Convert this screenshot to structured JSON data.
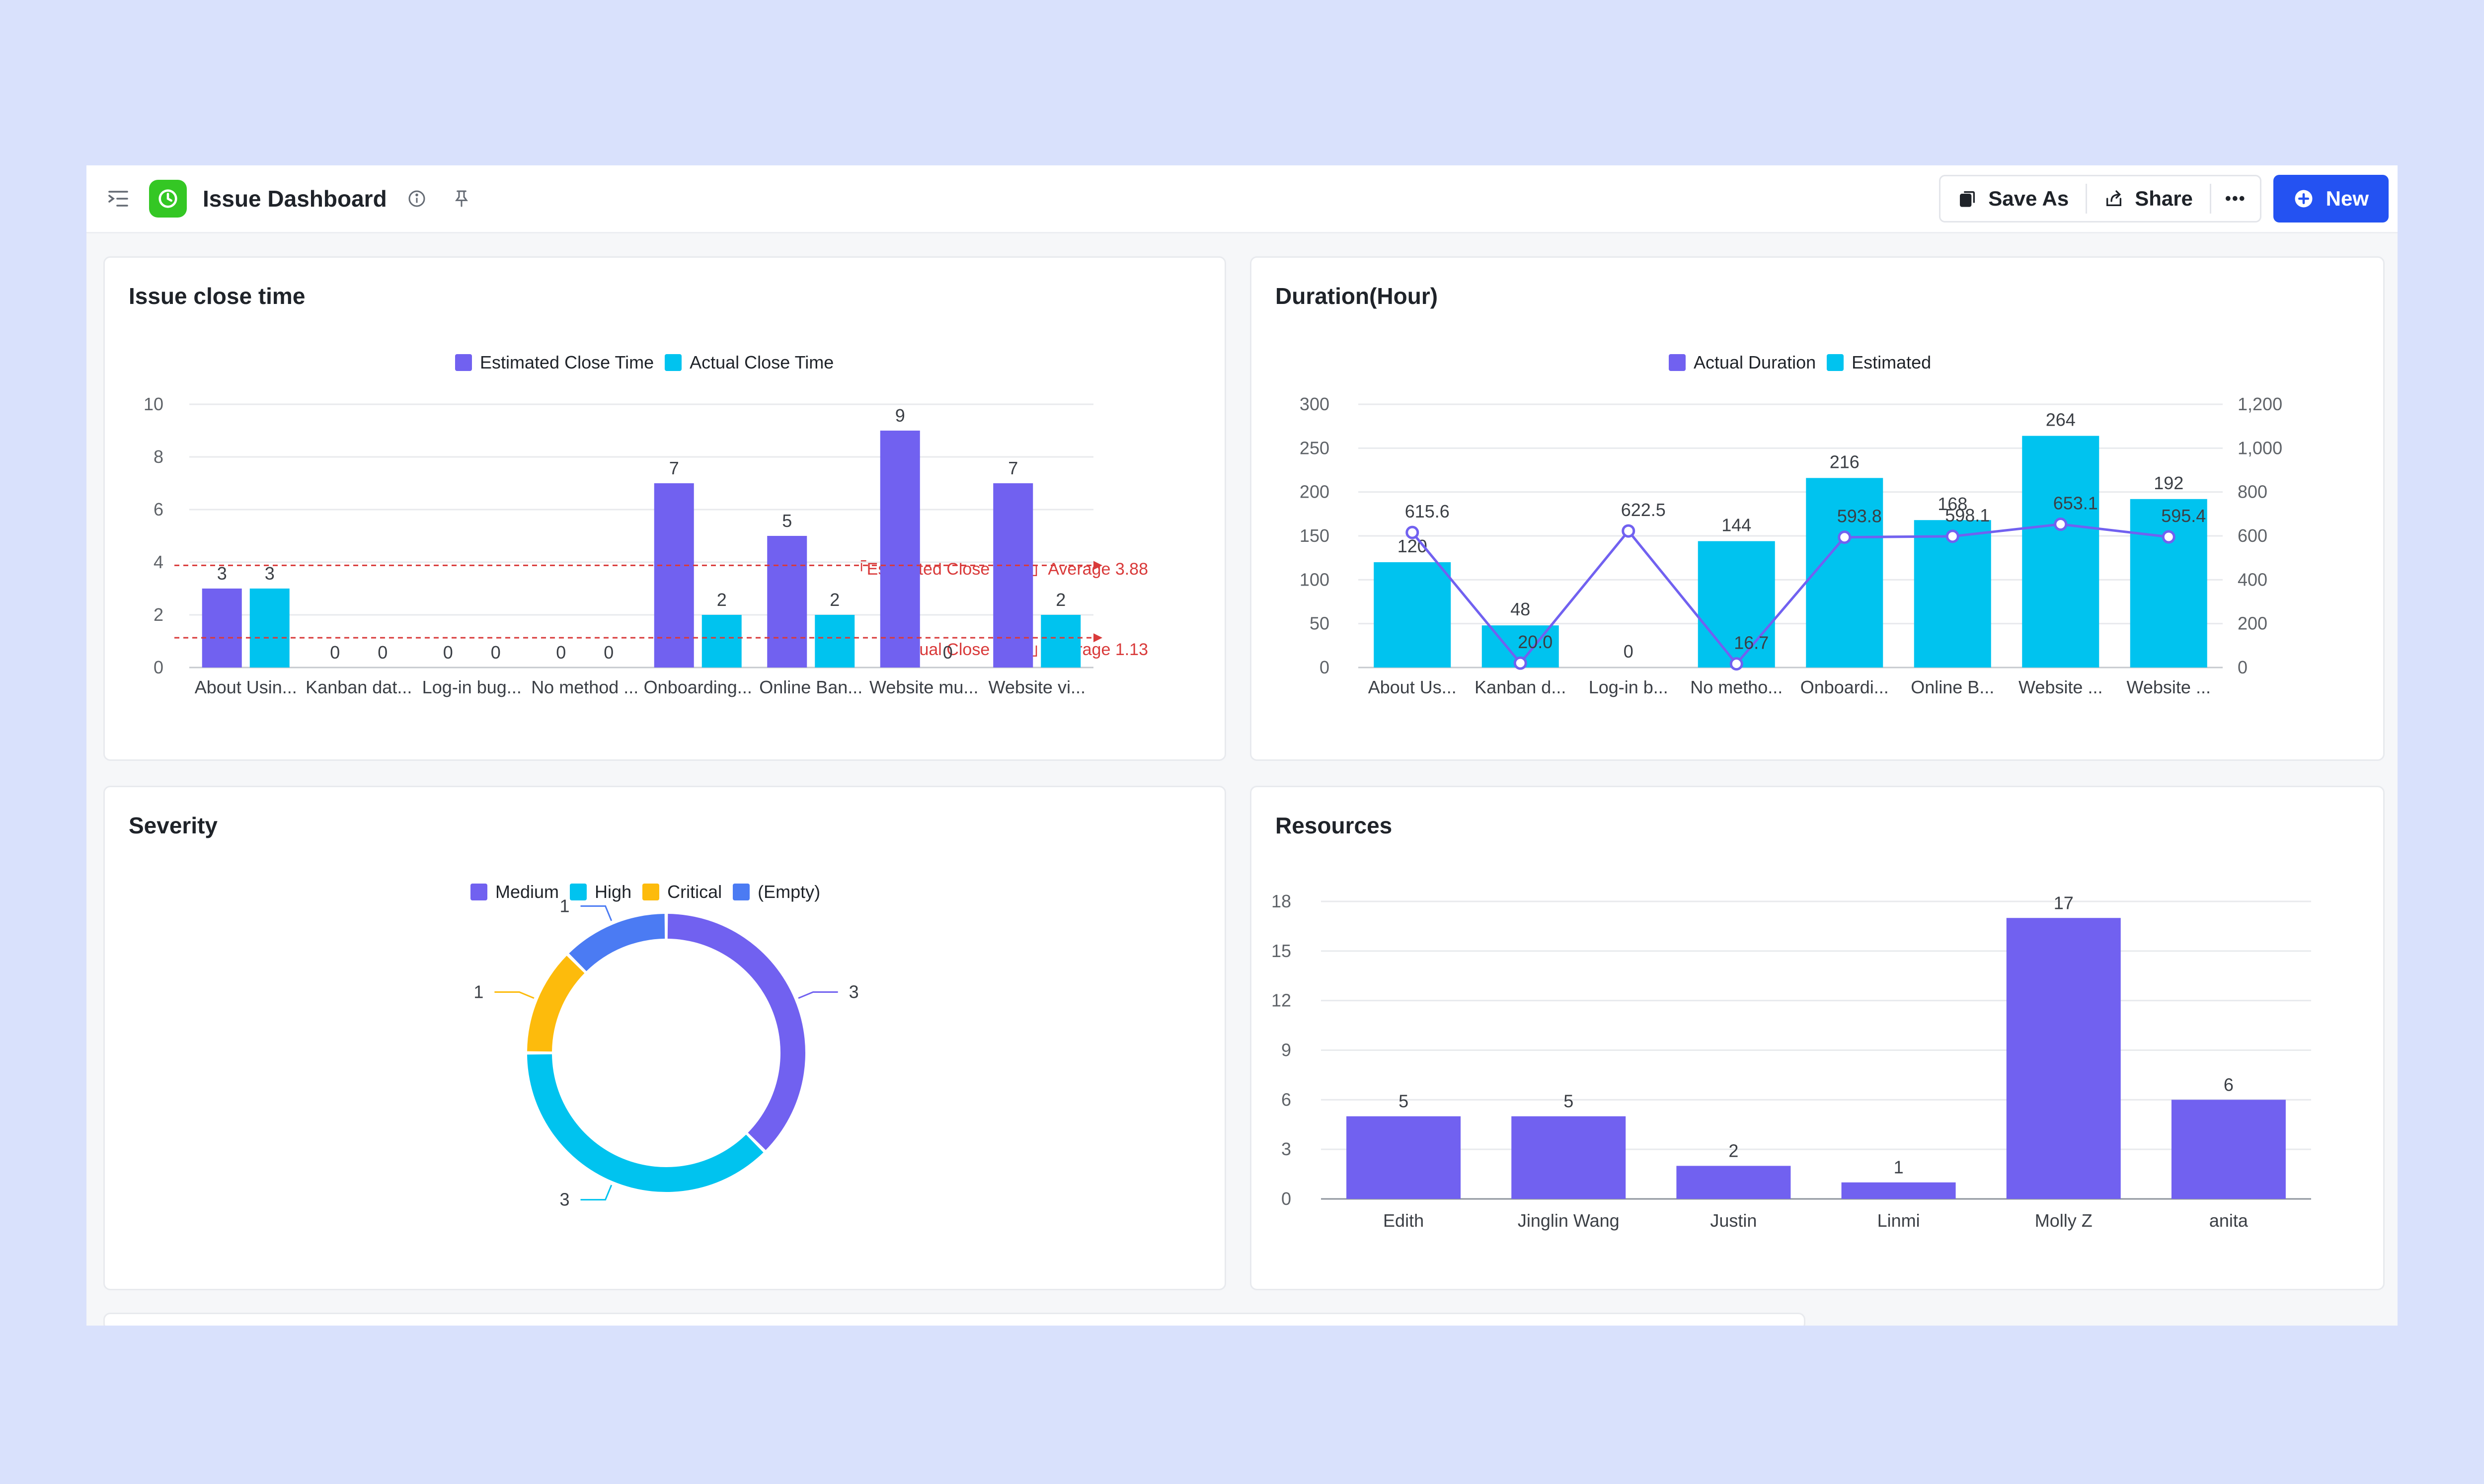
{
  "header": {
    "title": "Issue Dashboard",
    "save_as_label": "Save As",
    "share_label": "Share",
    "new_label": "New",
    "more_label": "•••"
  },
  "colors": {
    "purple": "#7161f0",
    "cyan": "#00c3ef",
    "orange": "#fdbb0c",
    "blue": "#4b7bf3",
    "brand": "#2452f2",
    "ref_line": "#d93a3a"
  },
  "cards": {
    "issue_close_time": {
      "title": "Issue close time",
      "legend": [
        "Estimated Close Time",
        "Actual Close Time"
      ],
      "ref_lines": [
        "「Estimated Close Time」Average 3.88",
        "「Actual Close Time」Average 1.13"
      ]
    },
    "duration": {
      "title": "Duration(Hour)",
      "legend": [
        "Actual Duration",
        "Estimated"
      ]
    },
    "severity": {
      "title": "Severity",
      "legend": [
        "Medium",
        "High",
        "Critical",
        "(Empty)"
      ]
    },
    "resources": {
      "title": "Resources"
    }
  },
  "chart_data": [
    {
      "type": "bar",
      "title": "Issue close time",
      "categories": [
        "About Usin...",
        "Kanban dat...",
        "Log-in bug...",
        "No method ...",
        "Onboarding...",
        "Online Ban...",
        "Website mu...",
        "Website vi..."
      ],
      "series": [
        {
          "name": "Estimated Close Time",
          "color": "#7161f0",
          "values": [
            3,
            0,
            0,
            0,
            7,
            5,
            9,
            7
          ]
        },
        {
          "name": "Actual Close Time",
          "color": "#00c3ef",
          "values": [
            3,
            0,
            0,
            0,
            2,
            2,
            0,
            2
          ]
        }
      ],
      "reference_lines": [
        {
          "series": "Estimated Close Time",
          "value": 3.88
        },
        {
          "series": "Actual Close Time",
          "value": 1.13
        }
      ],
      "ylim": [
        0,
        10
      ],
      "yticks": [
        0,
        2,
        4,
        6,
        8,
        10
      ],
      "legend": "top-center",
      "grid": true
    },
    {
      "type": "bar",
      "title": "Duration(Hour)",
      "categories": [
        "About Us...",
        "Kanban d...",
        "Log-in b...",
        "No metho...",
        "Onboardi...",
        "Online B...",
        "Website ...",
        "Website ..."
      ],
      "series": [
        {
          "name": "Actual Duration",
          "type": "line",
          "axis": "right",
          "color": "#7161f0",
          "values": [
            615.6,
            20.0,
            622.5,
            16.7,
            593.8,
            598.1,
            653.1,
            595.4
          ]
        },
        {
          "name": "Estimated",
          "type": "bar",
          "axis": "left",
          "color": "#00c3ef",
          "values": [
            120,
            48,
            0,
            144,
            216,
            168,
            264,
            192
          ]
        }
      ],
      "ylim": [
        0,
        300
      ],
      "yticks": [
        0,
        50,
        100,
        150,
        200,
        250,
        300
      ],
      "y2lim": [
        0,
        1200
      ],
      "y2ticks": [
        "0",
        "200",
        "400",
        "600",
        "800",
        "1,000",
        "1,200"
      ],
      "legend": "top-center",
      "grid": true
    },
    {
      "type": "pie",
      "title": "Severity",
      "donut": true,
      "slices": [
        {
          "label": "Medium",
          "value": 3,
          "color": "#7161f0"
        },
        {
          "label": "High",
          "value": 3,
          "color": "#00c3ef"
        },
        {
          "label": "Critical",
          "value": 1,
          "color": "#fdbb0c"
        },
        {
          "label": "(Empty)",
          "value": 1,
          "color": "#4b7bf3"
        }
      ],
      "legend": "top-center"
    },
    {
      "type": "bar",
      "title": "Resources",
      "categories": [
        "Edith",
        "Jinglin Wang",
        "Justin",
        "Linmi",
        "Molly Z",
        "anita"
      ],
      "values": [
        5,
        5,
        2,
        1,
        17,
        6
      ],
      "color": "#7161f0",
      "ylim": [
        0,
        18
      ],
      "yticks": [
        0,
        3,
        6,
        9,
        12,
        15,
        18
      ],
      "grid": true
    }
  ]
}
